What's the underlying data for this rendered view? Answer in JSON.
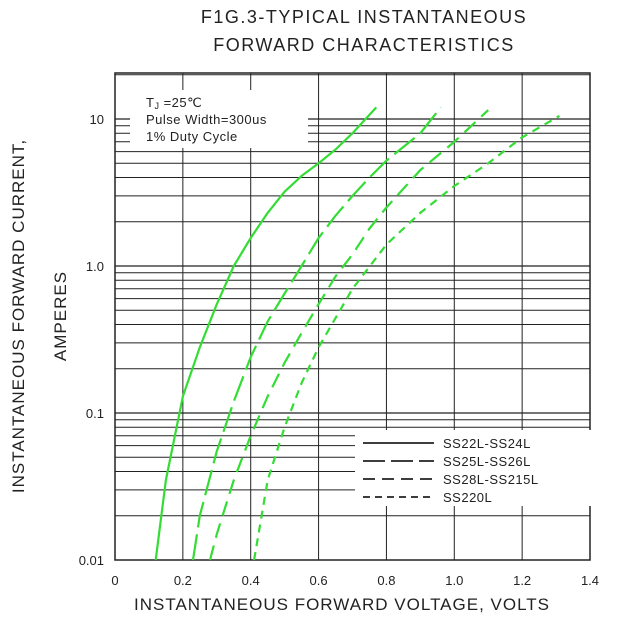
{
  "chart_data": {
    "type": "line",
    "title": "F1G.3-TYPICAL INSTANTANEOUS",
    "subtitle": "FORWARD CHARACTERISTICS",
    "xlabel": "INSTANTANEOUS FORWARD VOLTAGE, VOLTS",
    "ylabel": "INSTANTANEOUS FORWARD CURRENT,",
    "ylabel2": "AMPERES",
    "xlim": [
      0,
      1.4
    ],
    "ylim": [
      0.01,
      20
    ],
    "yscale": "log",
    "x_ticks": [
      "0",
      "0.2",
      "0.4",
      "0.6",
      "0.8",
      "1.0",
      "1.2",
      "1.4"
    ],
    "y_ticks": [
      "0.01",
      "0.1",
      "1.0",
      "10"
    ],
    "grid": true,
    "legend_position": "bottom-right",
    "annotation": {
      "line1": "TJ =25℃",
      "line2": "Pulse Width=300us",
      "line3": "1% Duty Cycle"
    },
    "series_color": "#33dd33",
    "series": [
      {
        "name": "SS22L-SS24L",
        "dash": "solid",
        "x": [
          0.12,
          0.15,
          0.2,
          0.25,
          0.3,
          0.35,
          0.4,
          0.45,
          0.5,
          0.55,
          0.6,
          0.65,
          0.7,
          0.77
        ],
        "y": [
          0.01,
          0.035,
          0.13,
          0.28,
          0.55,
          1.0,
          1.55,
          2.3,
          3.2,
          4.1,
          5.0,
          6.2,
          8.0,
          12.0
        ]
      },
      {
        "name": "SS25L-SS26L",
        "dash": "long-dash",
        "x": [
          0.23,
          0.25,
          0.3,
          0.35,
          0.4,
          0.45,
          0.5,
          0.55,
          0.6,
          0.65,
          0.7,
          0.75,
          0.8,
          0.9,
          0.96
        ],
        "y": [
          0.01,
          0.02,
          0.055,
          0.12,
          0.24,
          0.42,
          0.65,
          1.0,
          1.55,
          2.2,
          3.0,
          4.0,
          5.2,
          8.0,
          12.0
        ]
      },
      {
        "name": "SS28L-SS215L",
        "dash": "medium-dash",
        "x": [
          0.28,
          0.3,
          0.35,
          0.4,
          0.45,
          0.5,
          0.55,
          0.6,
          0.65,
          0.7,
          0.75,
          0.8,
          0.9,
          1.0,
          1.1
        ],
        "y": [
          0.01,
          0.015,
          0.035,
          0.07,
          0.13,
          0.22,
          0.35,
          0.55,
          0.85,
          1.2,
          1.8,
          2.5,
          4.5,
          7.0,
          11.5
        ]
      },
      {
        "name": "SS220L",
        "dash": "short-dash",
        "x": [
          0.41,
          0.45,
          0.5,
          0.55,
          0.6,
          0.7,
          0.8,
          0.9,
          1.0,
          1.1,
          1.2,
          1.31
        ],
        "y": [
          0.01,
          0.035,
          0.08,
          0.16,
          0.28,
          0.7,
          1.4,
          2.3,
          3.5,
          5.0,
          7.5,
          10.5
        ]
      }
    ]
  }
}
